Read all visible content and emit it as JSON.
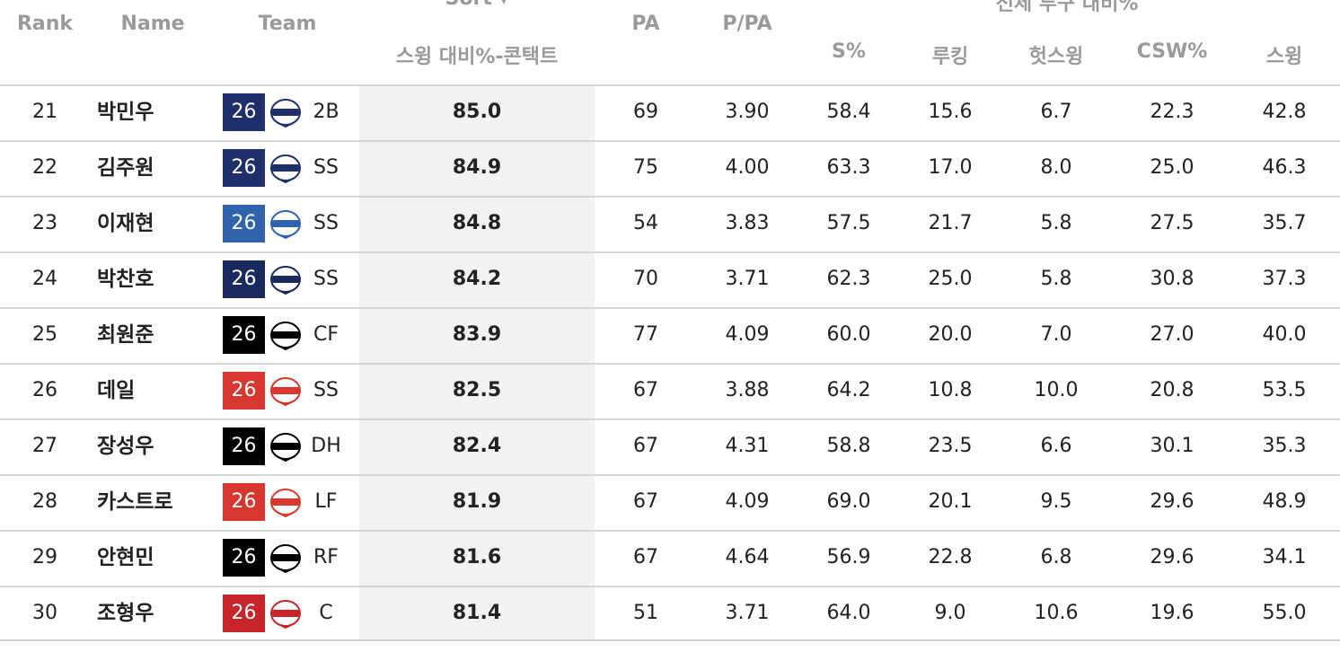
{
  "header": {
    "rank": "Rank",
    "name": "Name",
    "team": "Team",
    "sort_label": "Sort ▾",
    "sort_sub": "스윙 대비%-콘택트",
    "pa": "PA",
    "ppa": "P/PA",
    "group_label": "전체 투구 대비%",
    "s_pct": "S%",
    "looking": "루킹",
    "whiff": "헛스윙",
    "csw": "CSW%",
    "swing": "스윙"
  },
  "colors": {
    "dinos": "#1e2f6b",
    "lions": "#2f64ad",
    "bears": "#1a2a5e",
    "ktwiz": "#000000",
    "tigers": "#d7372c",
    "landers": "#c8252b"
  },
  "rows": [
    {
      "rank": "21",
      "name": "박민우",
      "year": "26",
      "team": "dinos",
      "logo": "dinos-logo-icon",
      "pos": "2B",
      "contact": "85.0",
      "pa": "69",
      "ppa": "3.90",
      "s": "58.4",
      "looking": "15.6",
      "whiff": "6.7",
      "csw": "22.3",
      "swing": "42.8"
    },
    {
      "rank": "22",
      "name": "김주원",
      "year": "26",
      "team": "dinos",
      "logo": "dinos-logo-icon",
      "pos": "SS",
      "contact": "84.9",
      "pa": "75",
      "ppa": "4.00",
      "s": "63.3",
      "looking": "17.0",
      "whiff": "8.0",
      "csw": "25.0",
      "swing": "46.3"
    },
    {
      "rank": "23",
      "name": "이재현",
      "year": "26",
      "team": "lions",
      "logo": "lions-logo-icon",
      "pos": "SS",
      "contact": "84.8",
      "pa": "54",
      "ppa": "3.83",
      "s": "57.5",
      "looking": "21.7",
      "whiff": "5.8",
      "csw": "27.5",
      "swing": "35.7"
    },
    {
      "rank": "24",
      "name": "박찬호",
      "year": "26",
      "team": "bears",
      "logo": "bears-logo-icon",
      "pos": "SS",
      "contact": "84.2",
      "pa": "70",
      "ppa": "3.71",
      "s": "62.3",
      "looking": "25.0",
      "whiff": "5.8",
      "csw": "30.8",
      "swing": "37.3"
    },
    {
      "rank": "25",
      "name": "최원준",
      "year": "26",
      "team": "ktwiz",
      "logo": "ktwiz-logo-icon",
      "pos": "CF",
      "contact": "83.9",
      "pa": "77",
      "ppa": "4.09",
      "s": "60.0",
      "looking": "20.0",
      "whiff": "7.0",
      "csw": "27.0",
      "swing": "40.0"
    },
    {
      "rank": "26",
      "name": "데일",
      "year": "26",
      "team": "tigers",
      "logo": "tigers-logo-icon",
      "pos": "SS",
      "contact": "82.5",
      "pa": "67",
      "ppa": "3.88",
      "s": "64.2",
      "looking": "10.8",
      "whiff": "10.0",
      "csw": "20.8",
      "swing": "53.5"
    },
    {
      "rank": "27",
      "name": "장성우",
      "year": "26",
      "team": "ktwiz",
      "logo": "ktwiz-logo-icon",
      "pos": "DH",
      "contact": "82.4",
      "pa": "67",
      "ppa": "4.31",
      "s": "58.8",
      "looking": "23.5",
      "whiff": "6.6",
      "csw": "30.1",
      "swing": "35.3"
    },
    {
      "rank": "28",
      "name": "카스트로",
      "year": "26",
      "team": "tigers",
      "logo": "tigers-logo-icon",
      "pos": "LF",
      "contact": "81.9",
      "pa": "67",
      "ppa": "4.09",
      "s": "69.0",
      "looking": "20.1",
      "whiff": "9.5",
      "csw": "29.6",
      "swing": "48.9"
    },
    {
      "rank": "29",
      "name": "안현민",
      "year": "26",
      "team": "ktwiz",
      "logo": "ktwiz-logo-icon",
      "pos": "RF",
      "contact": "81.6",
      "pa": "67",
      "ppa": "4.64",
      "s": "56.9",
      "looking": "22.8",
      "whiff": "6.8",
      "csw": "29.6",
      "swing": "34.1"
    },
    {
      "rank": "30",
      "name": "조형우",
      "year": "26",
      "team": "landers",
      "logo": "landers-logo-icon",
      "pos": "C",
      "contact": "81.4",
      "pa": "51",
      "ppa": "3.71",
      "s": "64.0",
      "looking": "9.0",
      "whiff": "10.6",
      "csw": "19.6",
      "swing": "55.0"
    }
  ]
}
